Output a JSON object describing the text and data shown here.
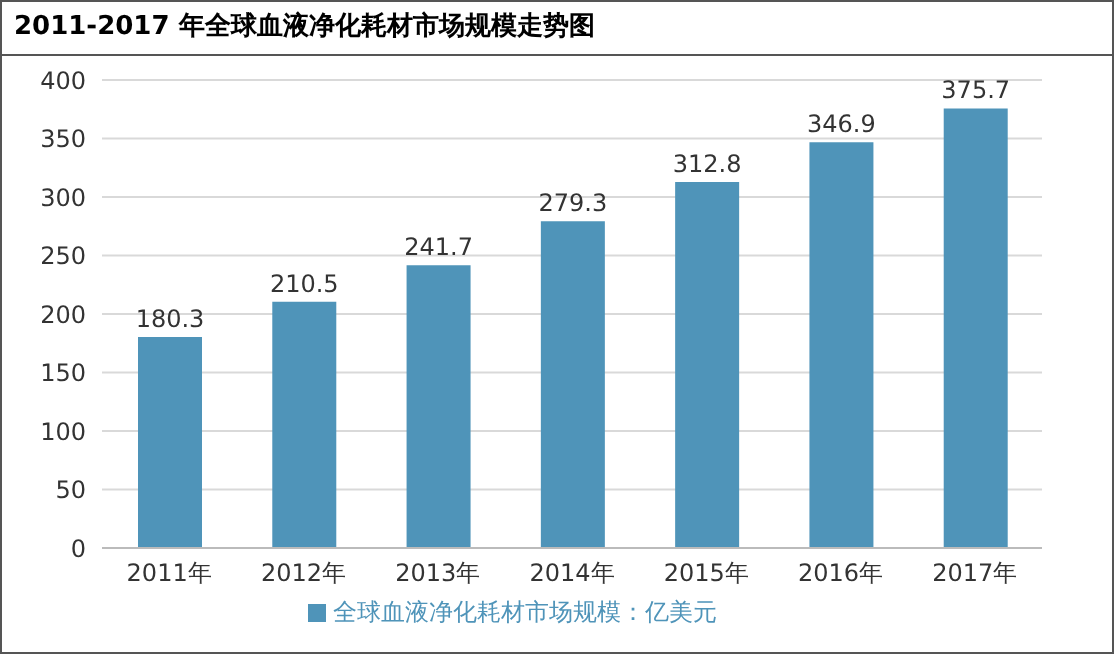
{
  "chart_data": {
    "type": "bar",
    "title": "2011-2017 年全球血液净化耗材市场规模走势图",
    "categories": [
      "2011年",
      "2012年",
      "2013年",
      "2014年",
      "2015年",
      "2016年",
      "2017年"
    ],
    "series": [
      {
        "name": "全球血液净化耗材市场规模：亿美元",
        "color": "#4f94b9",
        "values": [
          180.3,
          210.5,
          241.7,
          279.3,
          312.8,
          346.9,
          375.7
        ]
      }
    ],
    "ylim": [
      0,
      400
    ],
    "yticks": [
      0,
      50,
      100,
      150,
      200,
      250,
      300,
      350,
      400
    ],
    "grid": "y",
    "legend": "bottom",
    "data_labels": true
  }
}
